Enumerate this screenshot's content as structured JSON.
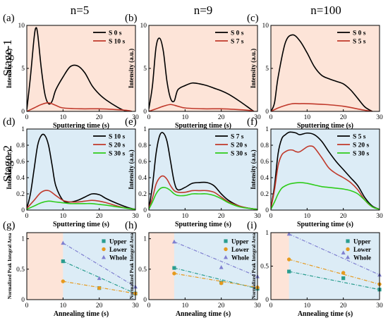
{
  "column_titles": [
    "n=5",
    "n=9",
    "n=100"
  ],
  "row_titles": [
    "Stage-1",
    "Stage-2"
  ],
  "colors": {
    "stage1_bg": "#fde4d8",
    "stage2_bg": "#dcecf6",
    "stage1_title": "#c8282a",
    "stage2_title": "#3a76b8",
    "black": "#000000",
    "red": "#c0392b",
    "green": "#2ecc1a",
    "upper": "#2a9d8f",
    "lower": "#e69a1e",
    "whole": "#7f7fd0"
  },
  "chart_data": [
    {
      "id": "a",
      "type": "line",
      "panel_label": "(a)",
      "xlabel": "Sputtering time (s)",
      "ylabel": "Intensity (a.u.)",
      "xlim": [
        0,
        30
      ],
      "ylim": [
        0,
        10
      ],
      "xticks": [
        0,
        10,
        20,
        30
      ],
      "yticks": [
        0,
        5,
        10
      ],
      "background": "stage1",
      "legend": "top-right",
      "series": [
        {
          "name": "S 0 s",
          "color": "black",
          "x": [
            0,
            1,
            2,
            2.5,
            3,
            4,
            5,
            6,
            7,
            8,
            10,
            12,
            14,
            16,
            18,
            20,
            22,
            25,
            27,
            29
          ],
          "y": [
            0.2,
            4,
            8.5,
            9.7,
            9,
            5,
            2,
            0.9,
            1.2,
            2.5,
            4,
            5.2,
            5.3,
            4.5,
            3,
            2,
            1.3,
            0.5,
            0.1,
            0
          ]
        },
        {
          "name": "S 10 s",
          "color": "red",
          "x": [
            0,
            2,
            4,
            6,
            8,
            10,
            15,
            20,
            25,
            28,
            29
          ],
          "y": [
            0,
            0.4,
            0.8,
            1,
            0.7,
            0.4,
            0.3,
            0.3,
            0.2,
            0.1,
            0
          ]
        }
      ]
    },
    {
      "id": "b",
      "type": "line",
      "panel_label": "(b)",
      "xlabel": "Sputtering time (s)",
      "ylabel": "Intensity (a.u.)",
      "xlim": [
        0,
        30
      ],
      "ylim": [
        0,
        10
      ],
      "xticks": [
        0,
        10,
        20,
        30
      ],
      "yticks": [
        0,
        5,
        10
      ],
      "background": "stage1",
      "legend": "top-right",
      "series": [
        {
          "name": "S 0 s",
          "color": "black",
          "x": [
            0,
            1,
            2,
            3,
            4,
            5,
            6,
            7,
            8,
            10,
            12,
            14,
            16,
            18,
            20,
            22,
            25,
            28,
            29
          ],
          "y": [
            0.3,
            3,
            7.5,
            8.5,
            7,
            3.5,
            1.5,
            1.2,
            2.5,
            3,
            3.3,
            3.2,
            3,
            2.7,
            2.4,
            2,
            1.2,
            0.3,
            0
          ]
        },
        {
          "name": "S 7 s",
          "color": "red",
          "x": [
            0,
            2,
            4,
            6,
            8,
            10,
            15,
            20,
            25,
            28,
            29
          ],
          "y": [
            0,
            0.3,
            0.6,
            0.8,
            0.6,
            0.4,
            0.3,
            0.3,
            0.2,
            0.1,
            0
          ]
        }
      ]
    },
    {
      "id": "c",
      "type": "line",
      "panel_label": "(c)",
      "xlabel": "Sputtering time (s)",
      "ylabel": "Intensity (a.u.)",
      "xlim": [
        0,
        30
      ],
      "ylim": [
        0,
        10
      ],
      "xticks": [
        0,
        10,
        20,
        30
      ],
      "yticks": [
        0,
        5,
        10
      ],
      "background": "stage1",
      "legend": "top-right",
      "series": [
        {
          "name": "S 0 s",
          "color": "black",
          "x": [
            0,
            1,
            2,
            4,
            6,
            8,
            10,
            12,
            14,
            16,
            18,
            20,
            22,
            24,
            26,
            28
          ],
          "y": [
            0,
            1,
            4,
            8,
            8.9,
            8.2,
            6.8,
            5.2,
            4.2,
            3.8,
            3.5,
            3.2,
            2.5,
            1.5,
            0.5,
            0
          ]
        },
        {
          "name": "S 5 s",
          "color": "red",
          "x": [
            0,
            2,
            4,
            6,
            8,
            10,
            15,
            20,
            25,
            28
          ],
          "y": [
            0,
            0.4,
            0.7,
            0.9,
            0.9,
            0.9,
            0.8,
            0.6,
            0.2,
            0
          ]
        }
      ]
    },
    {
      "id": "d",
      "type": "line",
      "panel_label": "(d)",
      "xlabel": "Sputtering time (s)",
      "ylabel": "Intensity (a.u.)",
      "xlim": [
        0,
        30
      ],
      "ylim": [
        0,
        1.0
      ],
      "xticks": [
        0,
        10,
        20,
        30
      ],
      "yticks": [
        0,
        0.2,
        0.4,
        0.6,
        0.8,
        1.0
      ],
      "background": "stage2",
      "legend": "top-right",
      "series": [
        {
          "name": "S 10 s",
          "color": "black",
          "x": [
            0,
            1,
            2,
            3,
            4,
            5,
            6,
            7,
            8,
            10,
            12,
            14,
            16,
            18,
            20,
            22,
            25,
            28,
            30
          ],
          "y": [
            0.02,
            0.2,
            0.5,
            0.8,
            0.92,
            0.92,
            0.8,
            0.55,
            0.3,
            0.12,
            0.1,
            0.12,
            0.16,
            0.2,
            0.19,
            0.14,
            0.08,
            0.03,
            0.01
          ]
        },
        {
          "name": "S 20 s",
          "color": "red",
          "x": [
            0,
            2,
            4,
            6,
            8,
            10,
            12,
            14,
            16,
            18,
            20,
            22,
            25,
            28,
            30
          ],
          "y": [
            0.02,
            0.12,
            0.22,
            0.24,
            0.18,
            0.12,
            0.1,
            0.1,
            0.11,
            0.12,
            0.11,
            0.09,
            0.05,
            0.02,
            0.01
          ]
        },
        {
          "name": "S 30 s",
          "color": "green",
          "x": [
            0,
            2,
            4,
            6,
            8,
            10,
            12,
            14,
            16,
            18,
            20,
            22,
            25,
            28,
            30
          ],
          "y": [
            0.01,
            0.05,
            0.09,
            0.11,
            0.1,
            0.09,
            0.08,
            0.08,
            0.08,
            0.08,
            0.07,
            0.06,
            0.04,
            0.02,
            0.01
          ]
        }
      ]
    },
    {
      "id": "e",
      "type": "line",
      "panel_label": "(e)",
      "xlabel": "Sputtering time (s)",
      "ylabel": "Intensity (a.u.)",
      "xlim": [
        0,
        30
      ],
      "ylim": [
        0,
        1.0
      ],
      "xticks": [
        0,
        10,
        20,
        30
      ],
      "yticks": [
        0,
        0.2,
        0.4,
        0.6,
        0.8,
        1.0
      ],
      "background": "stage2",
      "legend": "top-right",
      "series": [
        {
          "name": "S 7 s",
          "color": "black",
          "x": [
            0,
            1,
            2,
            3,
            4,
            5,
            6,
            7,
            8,
            10,
            12,
            14,
            16,
            18,
            20,
            22,
            25,
            28,
            30
          ],
          "y": [
            0.02,
            0.3,
            0.7,
            0.92,
            0.95,
            0.85,
            0.6,
            0.35,
            0.25,
            0.28,
            0.33,
            0.34,
            0.34,
            0.3,
            0.2,
            0.12,
            0.05,
            0.02,
            0.01
          ]
        },
        {
          "name": "S 20 s",
          "color": "red",
          "x": [
            0,
            1,
            2,
            3,
            4,
            5,
            6,
            7,
            8,
            10,
            12,
            14,
            16,
            18,
            20,
            22,
            25,
            28,
            30
          ],
          "y": [
            0.02,
            0.15,
            0.32,
            0.4,
            0.42,
            0.38,
            0.3,
            0.24,
            0.22,
            0.22,
            0.24,
            0.24,
            0.24,
            0.22,
            0.16,
            0.1,
            0.05,
            0.02,
            0.01
          ]
        },
        {
          "name": "S 30 s",
          "color": "green",
          "x": [
            0,
            1,
            2,
            3,
            4,
            5,
            6,
            7,
            8,
            10,
            12,
            14,
            16,
            18,
            20,
            22,
            25,
            28,
            30
          ],
          "y": [
            0.01,
            0.1,
            0.2,
            0.26,
            0.28,
            0.27,
            0.24,
            0.2,
            0.18,
            0.18,
            0.2,
            0.2,
            0.2,
            0.18,
            0.14,
            0.09,
            0.04,
            0.02,
            0.01
          ]
        }
      ]
    },
    {
      "id": "f",
      "type": "line",
      "panel_label": "(f)",
      "xlabel": "Sputtering time (s)",
      "ylabel": "Intensity (a.u.)",
      "xlim": [
        0,
        30
      ],
      "ylim": [
        0,
        1.0
      ],
      "xticks": [
        0,
        10,
        20,
        30
      ],
      "yticks": [
        0,
        0.2,
        0.4,
        0.6,
        0.8,
        1.0
      ],
      "background": "stage2",
      "legend": "top-right",
      "series": [
        {
          "name": "S 5 s",
          "color": "black",
          "x": [
            0,
            1,
            2,
            3,
            4,
            5,
            6,
            7,
            8,
            10,
            12,
            14,
            16,
            18,
            20,
            22,
            24,
            26,
            28,
            30
          ],
          "y": [
            0.02,
            0.3,
            0.7,
            0.88,
            0.93,
            0.96,
            0.96,
            0.95,
            0.93,
            0.95,
            0.93,
            0.85,
            0.72,
            0.6,
            0.5,
            0.4,
            0.3,
            0.15,
            0.05,
            0.01
          ]
        },
        {
          "name": "S 20 s",
          "color": "red",
          "x": [
            0,
            1,
            2,
            3,
            4,
            5,
            6,
            7,
            8,
            10,
            11,
            12,
            14,
            16,
            18,
            20,
            22,
            24,
            26,
            28,
            30
          ],
          "y": [
            0.02,
            0.25,
            0.55,
            0.68,
            0.72,
            0.74,
            0.74,
            0.72,
            0.72,
            0.78,
            0.79,
            0.77,
            0.65,
            0.52,
            0.45,
            0.4,
            0.34,
            0.25,
            0.12,
            0.04,
            0.01
          ]
        },
        {
          "name": "S 30 s",
          "color": "green",
          "x": [
            0,
            1,
            2,
            3,
            4,
            5,
            6,
            8,
            10,
            12,
            14,
            16,
            18,
            20,
            22,
            24,
            26,
            28,
            30
          ],
          "y": [
            0.01,
            0.1,
            0.2,
            0.27,
            0.3,
            0.32,
            0.33,
            0.34,
            0.33,
            0.31,
            0.29,
            0.28,
            0.27,
            0.26,
            0.24,
            0.2,
            0.12,
            0.04,
            0.01
          ]
        }
      ]
    },
    {
      "id": "g",
      "type": "scatter",
      "panel_label": "(g)",
      "xlabel": "Annealing time (s)",
      "ylabel": "Normalized Peak Integral Area",
      "xlim": [
        0,
        30
      ],
      "ylim": [
        0,
        1.1
      ],
      "xticks": [
        0,
        10,
        20,
        30
      ],
      "yticks": [
        0,
        0.5,
        1.0
      ],
      "stage1_span": [
        0,
        10
      ],
      "legend": "top-right",
      "series": [
        {
          "name": "Upper",
          "marker": "square",
          "color": "upper",
          "x": [
            10,
            20,
            30
          ],
          "y": [
            0.63,
            0.19,
            0.1
          ]
        },
        {
          "name": "Lower",
          "marker": "circle",
          "color": "lower",
          "x": [
            10,
            20,
            30
          ],
          "y": [
            0.3,
            0.19,
            0.1
          ]
        },
        {
          "name": "Whole",
          "marker": "triangle",
          "color": "whole",
          "x": [
            10,
            20,
            30
          ],
          "y": [
            0.93,
            0.35,
            0.21
          ]
        }
      ]
    },
    {
      "id": "h",
      "type": "scatter",
      "panel_label": "(h)",
      "xlabel": "Annealing time (s)",
      "ylabel": "Normalized Peak Integral Area",
      "xlim": [
        0,
        30
      ],
      "ylim": [
        0,
        1.1
      ],
      "xticks": [
        0,
        10,
        20,
        30
      ],
      "yticks": [
        0,
        0.5,
        1.0
      ],
      "stage1_span": [
        0,
        7
      ],
      "legend": "top-right",
      "series": [
        {
          "name": "Upper",
          "marker": "square",
          "color": "upper",
          "x": [
            7,
            20,
            30
          ],
          "y": [
            0.52,
            0.28,
            0.18
          ]
        },
        {
          "name": "Lower",
          "marker": "circle",
          "color": "lower",
          "x": [
            7,
            20,
            30
          ],
          "y": [
            0.43,
            0.27,
            0.2
          ]
        },
        {
          "name": "Whole",
          "marker": "triangle",
          "color": "whole",
          "x": [
            7,
            20,
            30
          ],
          "y": [
            0.95,
            0.53,
            0.38
          ]
        }
      ]
    },
    {
      "id": "i",
      "type": "scatter",
      "panel_label": "(i)",
      "xlabel": "Annealing time (s)",
      "ylabel": "Normalized Peak Integral Area",
      "xlim": [
        0,
        30
      ],
      "ylim": [
        0,
        1.0
      ],
      "xticks": [
        0,
        10,
        20,
        30
      ],
      "yticks": [
        0,
        0.5,
        1.0
      ],
      "stage1_span": [
        0,
        5
      ],
      "legend": "top-right",
      "series": [
        {
          "name": "Upper",
          "marker": "square",
          "color": "upper",
          "x": [
            5,
            20,
            30
          ],
          "y": [
            0.42,
            0.32,
            0.15
          ]
        },
        {
          "name": "Lower",
          "marker": "circle",
          "color": "lower",
          "x": [
            5,
            20,
            30
          ],
          "y": [
            0.6,
            0.4,
            0.23
          ]
        },
        {
          "name": "Whole",
          "marker": "triangle",
          "color": "whole",
          "x": [
            5,
            20,
            30
          ],
          "y": [
            0.98,
            0.7,
            0.37
          ]
        }
      ]
    }
  ]
}
